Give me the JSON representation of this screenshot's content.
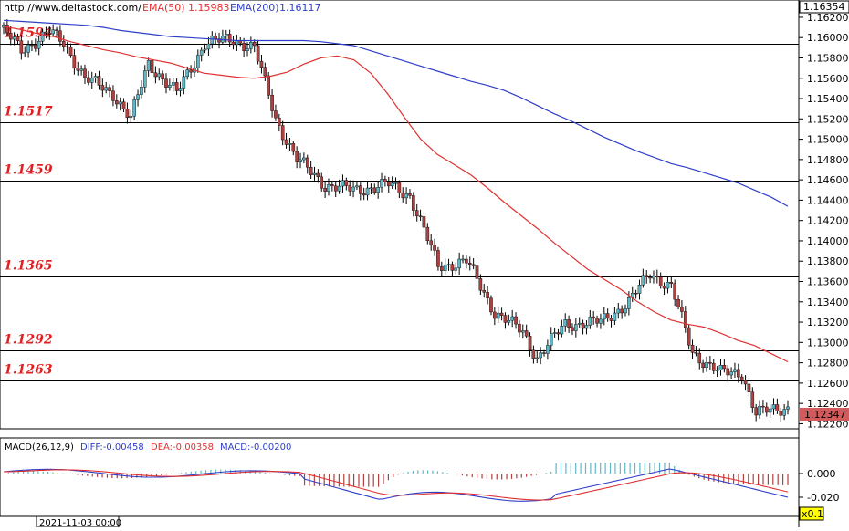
{
  "header": {
    "site": "http://www.deltastock.com/",
    "ema50_label": "EMA(50)",
    "ema50_value": "1.15983",
    "ema200_label": "EMA(200)",
    "ema200_value": "1.16117",
    "ema50_color": "#e03030",
    "ema200_color": "#2f3fc8"
  },
  "price_axis": {
    "top_value": "1.16354",
    "last_value": "1.12347",
    "ticks": [
      "1.16200",
      "1.16000",
      "1.15800",
      "1.15600",
      "1.15400",
      "1.15200",
      "1.15000",
      "1.14800",
      "1.14600",
      "1.14400",
      "1.14200",
      "1.14000",
      "1.13800",
      "1.13600",
      "1.13400",
      "1.13200",
      "1.13000",
      "1.12800",
      "1.12600",
      "1.12400",
      "1.12200"
    ]
  },
  "macd": {
    "title": "MACD(26,12,9)",
    "diff_label": "DIFF:-0.00458",
    "dea_label": "DEA:-0.00358",
    "macd_label": "MACD:-0.00200",
    "ticks": [
      "0.000",
      "-0.020"
    ],
    "scale": "x0.1",
    "diff_color": "#2f3fc8",
    "dea_color": "#e03030",
    "hist_pos_color": "#5fb8c8",
    "hist_neg_color": "#b04040"
  },
  "time_axis": {
    "label": "2021-11-03 00:00"
  },
  "chart_data": {
    "type": "candlestick",
    "ylim": [
      1.1215,
      1.1637
    ],
    "levels": [
      "1.1594",
      "1.1517",
      "1.1459",
      "1.1365",
      "1.1292",
      "1.1263"
    ],
    "up_color": "#5fb8c8",
    "down_color": "#b04040",
    "ema50": [
      1.1611,
      1.1608,
      1.1604,
      1.1601,
      1.1596,
      1.1592,
      1.1588,
      1.1585,
      1.1581,
      1.1578,
      1.1575,
      1.157,
      1.1565,
      1.1563,
      1.1561,
      1.156,
      1.1562,
      1.1566,
      1.1574,
      1.158,
      1.1582,
      1.1578,
      1.1565,
      1.1545,
      1.1522,
      1.15,
      1.1485,
      1.1475,
      1.1465,
      1.1452,
      1.1438,
      1.1425,
      1.1412,
      1.1398,
      1.1385,
      1.1372,
      1.1362,
      1.1352,
      1.134,
      1.133,
      1.1322,
      1.1318,
      1.1315,
      1.1309,
      1.1302,
      1.1297,
      1.1289,
      1.1281
    ],
    "ema200": [
      1.1617,
      1.1616,
      1.1615,
      1.1614,
      1.1613,
      1.1612,
      1.161,
      1.1607,
      1.1605,
      1.1603,
      1.1601,
      1.16,
      1.1599,
      1.1598,
      1.1597,
      1.1597,
      1.1597,
      1.1597,
      1.1597,
      1.1596,
      1.1594,
      1.1592,
      1.1587,
      1.1582,
      1.1577,
      1.1572,
      1.1567,
      1.1562,
      1.1557,
      1.1553,
      1.1548,
      1.1541,
      1.1533,
      1.1525,
      1.1518,
      1.151,
      1.1502,
      1.1495,
      1.1488,
      1.1482,
      1.1476,
      1.1472,
      1.1467,
      1.1462,
      1.1457,
      1.145,
      1.1443,
      1.1434
    ]
  }
}
